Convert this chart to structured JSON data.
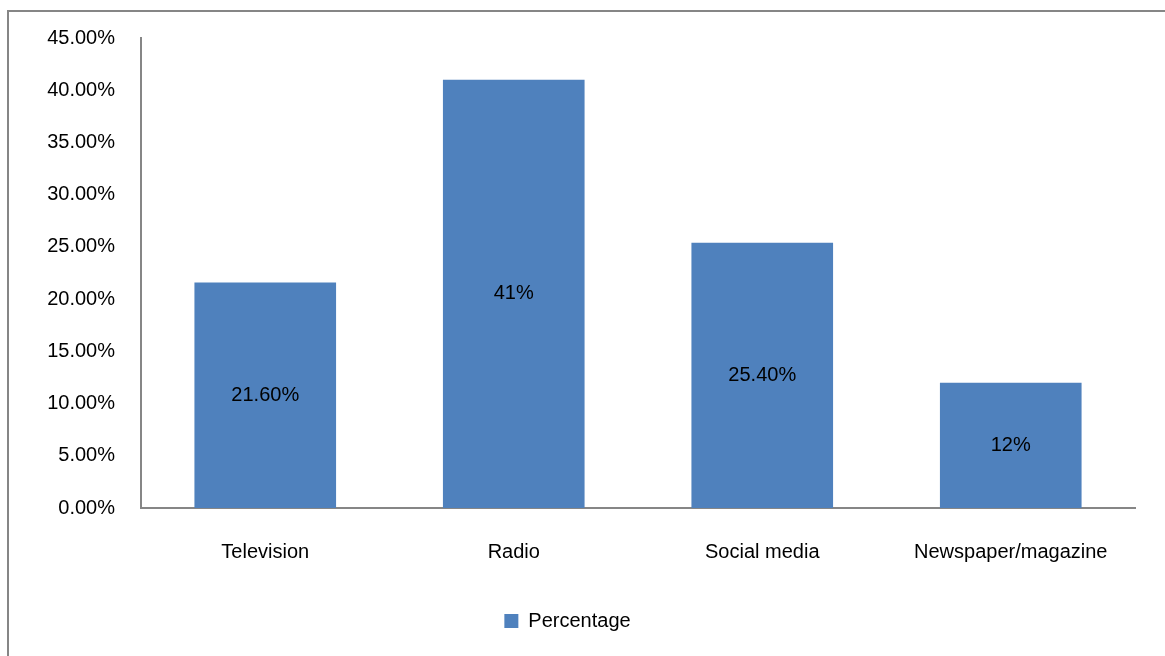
{
  "chart_data": {
    "type": "bar",
    "categories": [
      "Television",
      "Radio",
      "Social media",
      "Newspaper/magazine"
    ],
    "series": [
      {
        "name": "Percentage",
        "color": "#4f81bd",
        "values": [
          21.6,
          41,
          25.4,
          12
        ],
        "value_labels": [
          "21.60%",
          "41%",
          "25.40%",
          "12%"
        ]
      }
    ],
    "ylim": [
      0,
      45
    ],
    "yticks": [
      {
        "value": 0,
        "label": "0.00%"
      },
      {
        "value": 5,
        "label": "5.00%"
      },
      {
        "value": 10,
        "label": "10.00%"
      },
      {
        "value": 15,
        "label": "15.00%"
      },
      {
        "value": 20,
        "label": "20.00%"
      },
      {
        "value": 25,
        "label": "25.00%"
      },
      {
        "value": 30,
        "label": "30.00%"
      },
      {
        "value": 35,
        "label": "35.00%"
      },
      {
        "value": 40,
        "label": "40.00%"
      },
      {
        "value": 45,
        "label": "45.00%"
      }
    ],
    "grid": false,
    "legend": "bottom"
  }
}
